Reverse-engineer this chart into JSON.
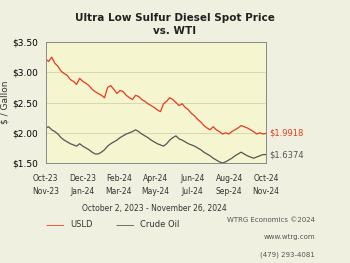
{
  "title": "Ultra Low Sulfur Diesel Spot Price\nvs. WTI",
  "ylabel": "$ / Gallon",
  "date_label": "October 2, 2023 - November 26, 2024",
  "watermark_line1": "WTRG Economics ©2024",
  "watermark_line2": "www.wtrg.com",
  "watermark_line3": "(479) 293-4081",
  "ylim": [
    1.5,
    3.5
  ],
  "yticks": [
    1.5,
    2.0,
    2.5,
    3.0,
    3.5
  ],
  "ytick_labels": [
    "$1.50",
    "$2.00",
    "$2.50",
    "$3.00",
    "$3.50"
  ],
  "usld_end_label": "$1.9918",
  "crude_end_label": "$1.6374",
  "legend_usld": "USLD",
  "legend_crude": "Crude Oil",
  "usld_color": "#e8391d",
  "crude_color": "#555555",
  "bg_color": "#f5f5d0",
  "plot_bg_color": "#f5f5d0",
  "fig_bg_color": "#f0f0e0",
  "grid_color": "#d8d8b0",
  "xtick_labels_row1": [
    "Oct-23",
    "Dec-23",
    "Feb-24",
    "Apr-24",
    "Jun-24",
    "Aug-24",
    "Oct-24"
  ],
  "xtick_labels_row2": [
    "Nov-23",
    "Jan-24",
    "Mar-24",
    "May-24",
    "Jul-24",
    "Sep-24",
    "Nov-24"
  ],
  "usld_data": [
    3.22,
    3.18,
    3.25,
    3.15,
    3.1,
    3.02,
    2.98,
    2.95,
    2.88,
    2.85,
    2.8,
    2.9,
    2.85,
    2.82,
    2.78,
    2.72,
    2.68,
    2.65,
    2.62,
    2.58,
    2.75,
    2.78,
    2.72,
    2.65,
    2.7,
    2.68,
    2.62,
    2.58,
    2.55,
    2.62,
    2.6,
    2.55,
    2.52,
    2.48,
    2.45,
    2.42,
    2.38,
    2.35,
    2.48,
    2.52,
    2.58,
    2.55,
    2.5,
    2.45,
    2.48,
    2.42,
    2.38,
    2.32,
    2.28,
    2.22,
    2.18,
    2.12,
    2.08,
    2.05,
    2.1,
    2.05,
    2.02,
    1.98,
    2.0,
    1.98,
    2.02,
    2.05,
    2.08,
    2.12,
    2.1,
    2.08,
    2.05,
    2.02,
    1.98,
    2.0,
    1.98,
    1.99
  ],
  "crude_data": [
    2.08,
    2.1,
    2.05,
    2.02,
    1.98,
    1.92,
    1.88,
    1.85,
    1.82,
    1.8,
    1.78,
    1.82,
    1.78,
    1.75,
    1.72,
    1.68,
    1.65,
    1.65,
    1.68,
    1.72,
    1.78,
    1.82,
    1.85,
    1.88,
    1.92,
    1.95,
    1.98,
    2.0,
    2.02,
    2.05,
    2.02,
    1.98,
    1.95,
    1.92,
    1.88,
    1.85,
    1.82,
    1.8,
    1.78,
    1.82,
    1.88,
    1.92,
    1.95,
    1.9,
    1.88,
    1.85,
    1.82,
    1.8,
    1.78,
    1.75,
    1.72,
    1.68,
    1.65,
    1.62,
    1.58,
    1.55,
    1.52,
    1.5,
    1.52,
    1.55,
    1.58,
    1.62,
    1.65,
    1.68,
    1.65,
    1.62,
    1.6,
    1.58,
    1.6,
    1.62,
    1.64,
    1.64
  ]
}
